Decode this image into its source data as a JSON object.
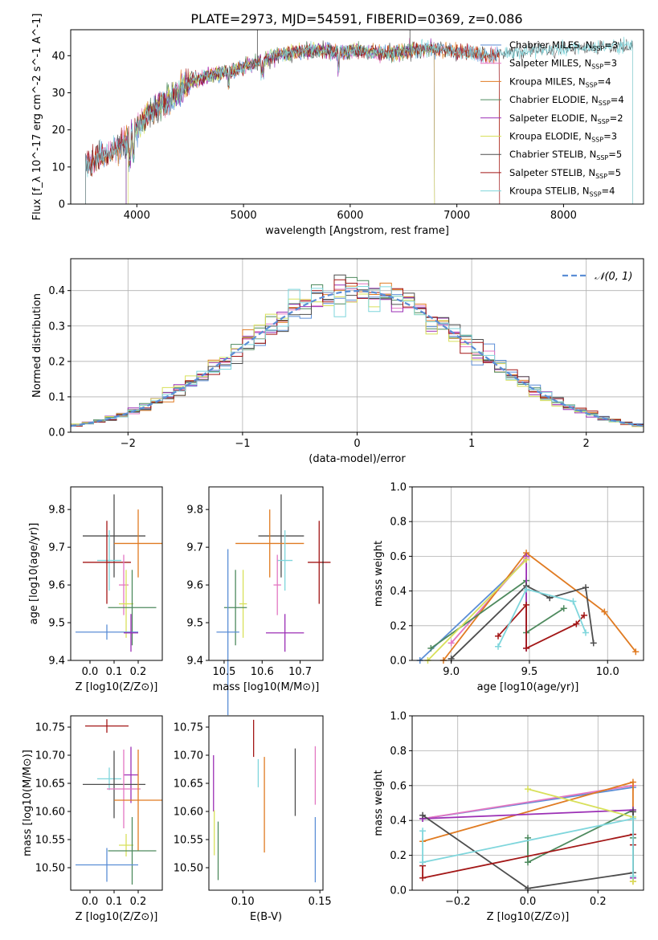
{
  "figure": {
    "title": "PLATE=2973, MJD=54591, FIBERID=0369, z=0.086"
  },
  "colors": {
    "chabrier_miles": "#5b8ed6",
    "salpeter_miles": "#e377c2",
    "kroupa_miles": "#e07b22",
    "chabrier_elodie": "#4e8a5e",
    "salpeter_elodie": "#9b2fb5",
    "kroupa_elodie": "#d8e05a",
    "chabrier_stelib": "#4d4d4d",
    "salpeter_stelib": "#a31717",
    "kroupa_stelib": "#7fd6dc",
    "normal": "#5b8ed6"
  },
  "chart_data": [
    {
      "id": "spectrum",
      "type": "line",
      "xlabel": "wavelength [Angstrom, rest frame]",
      "ylabel": "Flux [f_λ 10^-17 erg cm^-2 s^-1 A^-1]",
      "xlim": [
        3380,
        8750
      ],
      "ylim": [
        0,
        47
      ],
      "xticks": [
        4000,
        5000,
        6000,
        7000,
        8000
      ],
      "yticks": [
        0,
        10,
        20,
        30,
        40
      ],
      "legend_position": "top-right",
      "continuum": {
        "x": [
          3500,
          3700,
          3900,
          4100,
          4300,
          4500,
          4700,
          4900,
          5100,
          5300,
          5500,
          5700,
          5900,
          6100,
          6300,
          6500,
          6700,
          6900,
          7100,
          7300,
          7500,
          7800,
          8100,
          8400,
          8700
        ],
        "y": [
          10,
          13,
          17,
          24,
          28,
          33,
          35,
          36,
          38,
          40,
          41,
          41.5,
          41,
          41.5,
          40.5,
          41,
          42,
          41.5,
          41,
          40,
          41,
          41.5,
          42,
          42.5,
          43
        ]
      },
      "series": [
        {
          "name": "Chabrier MILES",
          "nssp": "3",
          "color_key": "chabrier_miles",
          "xmin": 3520,
          "xmax": 7400
        },
        {
          "name": "Salpeter MILES",
          "nssp": "3",
          "color_key": "salpeter_miles",
          "xmin": 3520,
          "xmax": 7400
        },
        {
          "name": "Kroupa MILES",
          "nssp": "4",
          "color_key": "kroupa_miles",
          "xmin": 3520,
          "xmax": 7400
        },
        {
          "name": "Chabrier ELODIE",
          "nssp": "4",
          "color_key": "chabrier_elodie",
          "xmin": 3900,
          "xmax": 6790
        },
        {
          "name": "Salpeter ELODIE",
          "nssp": "2",
          "color_key": "salpeter_elodie",
          "xmin": 3900,
          "xmax": 6790
        },
        {
          "name": "Kroupa ELODIE",
          "nssp": "3",
          "color_key": "kroupa_elodie",
          "xmin": 3920,
          "xmax": 6790
        },
        {
          "name": "Chabrier STELIB",
          "nssp": "5",
          "color_key": "chabrier_stelib",
          "xmin": 3520,
          "xmax": 8650
        },
        {
          "name": "Salpeter STELIB",
          "nssp": "5",
          "color_key": "salpeter_stelib",
          "xmin": 3520,
          "xmax": 7400
        },
        {
          "name": "Kroupa STELIB",
          "nssp": "4",
          "color_key": "kroupa_stelib",
          "xmin": 3520,
          "xmax": 8650
        }
      ]
    },
    {
      "id": "residuals",
      "type": "line",
      "xlabel": "(data-model)/error",
      "ylabel": "Normed distribution",
      "xlim": [
        -2.5,
        2.5
      ],
      "ylim": [
        0,
        0.49
      ],
      "xticks": [
        -2,
        -1,
        0,
        1,
        2
      ],
      "yticks": [
        0.0,
        0.1,
        0.2,
        0.3,
        0.4
      ],
      "grid": true,
      "legend_position": "top-right",
      "normal_label": "𝒩(0, 1)",
      "bin_width": 0.1
    },
    {
      "id": "age_vs_Z",
      "type": "scatter",
      "xlabel": "Z [log10(Z/Z⊙)]",
      "ylabel": "age [log10(age/yr)]",
      "xlim": [
        -0.08,
        0.3
      ],
      "ylim": [
        9.4,
        9.86
      ],
      "xticks": [
        0.0,
        0.1,
        0.2
      ],
      "yticks": [
        9.4,
        9.5,
        9.6,
        9.7,
        9.8
      ],
      "points": [
        {
          "color_key": "chabrier_stelib",
          "x": 0.1,
          "y": 9.73,
          "xerr": 0.13,
          "yerr": 0.11
        },
        {
          "color_key": "kroupa_miles",
          "x": 0.2,
          "y": 9.71,
          "xerr": 0.1,
          "yerr": 0.09
        },
        {
          "color_key": "kroupa_stelib",
          "x": 0.08,
          "y": 9.665,
          "xerr": 0.05,
          "yerr": 0.08
        },
        {
          "color_key": "salpeter_stelib",
          "x": 0.07,
          "y": 9.66,
          "xerr": 0.1,
          "yerr": 0.11
        },
        {
          "color_key": "salpeter_miles",
          "x": 0.14,
          "y": 9.6,
          "xerr": 0.02,
          "yerr": 0.08
        },
        {
          "color_key": "kroupa_elodie",
          "x": 0.15,
          "y": 9.55,
          "xerr": 0.03,
          "yerr": 0.09
        },
        {
          "color_key": "chabrier_elodie",
          "x": 0.175,
          "y": 9.54,
          "xerr": 0.1,
          "yerr": 0.1
        },
        {
          "color_key": "chabrier_miles",
          "x": 0.07,
          "y": 9.475,
          "xerr": 0.13,
          "yerr": 0.02
        },
        {
          "color_key": "salpeter_elodie",
          "x": 0.17,
          "y": 9.473,
          "xerr": 0.03,
          "yerr": 0.05
        }
      ]
    },
    {
      "id": "age_vs_mass",
      "type": "scatter",
      "xlabel": "mass [log10(M/M⊙)]",
      "ylabel": "",
      "xlim": [
        10.46,
        10.76
      ],
      "ylim": [
        9.4,
        9.86
      ],
      "xticks": [
        10.5,
        10.6,
        10.7
      ],
      "yticks": [
        9.4,
        9.5,
        9.6,
        9.7,
        9.8
      ],
      "points": [
        {
          "color_key": "chabrier_stelib",
          "x": 10.65,
          "y": 9.73,
          "xerr": 0.06,
          "yerr": 0.11
        },
        {
          "color_key": "kroupa_miles",
          "x": 10.62,
          "y": 9.71,
          "xerr": 0.09,
          "yerr": 0.09
        },
        {
          "color_key": "kroupa_stelib",
          "x": 10.66,
          "y": 9.665,
          "xerr": 0.02,
          "yerr": 0.08
        },
        {
          "color_key": "salpeter_stelib",
          "x": 10.75,
          "y": 9.66,
          "xerr": 0.03,
          "yerr": 0.11
        },
        {
          "color_key": "salpeter_miles",
          "x": 10.64,
          "y": 9.6,
          "xerr": 0.01,
          "yerr": 0.08
        },
        {
          "color_key": "kroupa_elodie",
          "x": 10.55,
          "y": 9.55,
          "xerr": 0.01,
          "yerr": 0.09
        },
        {
          "color_key": "chabrier_elodie",
          "x": 10.53,
          "y": 9.54,
          "xerr": 0.03,
          "yerr": 0.1
        },
        {
          "color_key": "chabrier_miles",
          "x": 10.51,
          "y": 9.475,
          "xerr": 0.03,
          "yerr": 0.22
        },
        {
          "color_key": "salpeter_elodie",
          "x": 10.66,
          "y": 9.473,
          "xerr": 0.05,
          "yerr": 0.05
        }
      ]
    },
    {
      "id": "mass_vs_Z",
      "type": "scatter",
      "xlabel": "Z [log10(Z/Z⊙)]",
      "ylabel": "mass [log10(M/M⊙)]",
      "xlim": [
        -0.08,
        0.3
      ],
      "ylim": [
        10.46,
        10.77
      ],
      "xticks": [
        0.0,
        0.1,
        0.2
      ],
      "yticks": [
        10.5,
        10.55,
        10.6,
        10.65,
        10.7,
        10.75
      ],
      "points": [
        {
          "color_key": "salpeter_stelib",
          "x": 0.07,
          "y": 10.752,
          "xerr": 0.09,
          "yerr": 0.012
        },
        {
          "color_key": "salpeter_elodie",
          "x": 0.17,
          "y": 10.665,
          "xerr": 0.03,
          "yerr": 0.05
        },
        {
          "color_key": "kroupa_stelib",
          "x": 0.08,
          "y": 10.658,
          "xerr": 0.05,
          "yerr": 0.02
        },
        {
          "color_key": "chabrier_stelib",
          "x": 0.1,
          "y": 10.648,
          "xerr": 0.13,
          "yerr": 0.06
        },
        {
          "color_key": "salpeter_miles",
          "x": 0.14,
          "y": 10.64,
          "xerr": 0.07,
          "yerr": 0.07
        },
        {
          "color_key": "kroupa_miles",
          "x": 0.2,
          "y": 10.62,
          "xerr": 0.1,
          "yerr": 0.09
        },
        {
          "color_key": "kroupa_elodie",
          "x": 0.15,
          "y": 10.54,
          "xerr": 0.03,
          "yerr": 0.02
        },
        {
          "color_key": "chabrier_elodie",
          "x": 0.175,
          "y": 10.53,
          "xerr": 0.1,
          "yerr": 0.06
        },
        {
          "color_key": "chabrier_miles",
          "x": 0.07,
          "y": 10.505,
          "xerr": 0.13,
          "yerr": 0.03
        }
      ]
    },
    {
      "id": "mass_vs_ebv",
      "type": "scatter",
      "xlabel": "E(B-V)",
      "ylabel": "",
      "xlim": [
        0.078,
        0.152
      ],
      "ylim": [
        10.46,
        10.77
      ],
      "xticks": [
        0.1,
        0.15
      ],
      "yticks": [
        10.5,
        10.55,
        10.6,
        10.65,
        10.7,
        10.75
      ],
      "points": [
        {
          "color_key": "salpeter_stelib",
          "x": 0.107,
          "y": 10.73,
          "xerr": 0,
          "yerr": 0.033
        },
        {
          "color_key": "salpeter_elodie",
          "x": 0.081,
          "y": 10.65,
          "xerr": 0,
          "yerr": 0.05
        },
        {
          "color_key": "kroupa_stelib",
          "x": 0.11,
          "y": 10.668,
          "xerr": 0,
          "yerr": 0.025
        },
        {
          "color_key": "chabrier_stelib",
          "x": 0.134,
          "y": 10.652,
          "xerr": 0,
          "yerr": 0.06
        },
        {
          "color_key": "salpeter_miles",
          "x": 0.147,
          "y": 10.664,
          "xerr": 0,
          "yerr": 0.052
        },
        {
          "color_key": "kroupa_miles",
          "x": 0.114,
          "y": 10.612,
          "xerr": 0,
          "yerr": 0.085
        },
        {
          "color_key": "kroupa_elodie",
          "x": 0.0815,
          "y": 10.562,
          "xerr": 0,
          "yerr": 0.04
        },
        {
          "color_key": "chabrier_elodie",
          "x": 0.084,
          "y": 10.53,
          "xerr": 0,
          "yerr": 0.052
        },
        {
          "color_key": "chabrier_miles",
          "x": 0.147,
          "y": 10.532,
          "xerr": 0,
          "yerr": 0.058
        }
      ]
    },
    {
      "id": "weight_vs_age",
      "type": "line",
      "xlabel": "age [log10(age/yr)]",
      "ylabel": "mass weight",
      "xlim": [
        8.75,
        10.23
      ],
      "ylim": [
        0,
        1.0
      ],
      "xticks": [
        9.0,
        9.5,
        10.0
      ],
      "yticks": [
        0.0,
        0.2,
        0.4,
        0.6,
        0.8,
        1.0
      ],
      "grid": true,
      "series": [
        {
          "color_key": "chabrier_miles",
          "x": [
            8.8,
            9.48
          ],
          "y": [
            0.0,
            0.58
          ]
        },
        {
          "color_key": "salpeter_miles",
          "x": [
            9.0,
            9.48
          ],
          "y": [
            0.1,
            0.59
          ]
        },
        {
          "color_key": "kroupa_miles",
          "x": [
            8.95,
            9.48,
            9.98,
            10.18
          ],
          "y": [
            0.0,
            0.62,
            0.28,
            0.05
          ]
        },
        {
          "color_key": "chabrier_elodie",
          "x": [
            8.87,
            9.48,
            9.48,
            9.72
          ],
          "y": [
            0.07,
            0.46,
            0.16,
            0.3
          ]
        },
        {
          "color_key": "salpeter_elodie",
          "x": [
            9.48,
            9.48
          ],
          "y": [
            0.07,
            0.6
          ]
        },
        {
          "color_key": "kroupa_elodie",
          "x": [
            8.85,
            9.48
          ],
          "y": [
            0.0,
            0.58
          ]
        },
        {
          "color_key": "chabrier_stelib",
          "x": [
            9.0,
            9.48,
            9.63,
            9.86,
            9.91
          ],
          "y": [
            0.01,
            0.43,
            0.36,
            0.42,
            0.1
          ]
        },
        {
          "color_key": "salpeter_stelib",
          "x": [
            9.3,
            9.48,
            9.48,
            9.8,
            9.85
          ],
          "y": [
            0.14,
            0.32,
            0.07,
            0.21,
            0.26
          ]
        },
        {
          "color_key": "kroupa_stelib",
          "x": [
            9.3,
            9.48,
            9.78,
            9.86
          ],
          "y": [
            0.08,
            0.41,
            0.34,
            0.16
          ]
        }
      ]
    },
    {
      "id": "weight_vs_Z",
      "type": "line",
      "xlabel": "Z [log10(Z/Z⊙)]",
      "ylabel": "mass weight",
      "xlim": [
        -0.33,
        0.33
      ],
      "ylim": [
        0,
        1.0
      ],
      "xticks": [
        -0.2,
        0.0,
        0.2
      ],
      "yticks": [
        0.0,
        0.2,
        0.4,
        0.6,
        0.8,
        1.0
      ],
      "grid": true,
      "series": [
        {
          "color_key": "chabrier_miles",
          "x": [
            -0.3,
            0.3
          ],
          "y": [
            0.41,
            0.59
          ]
        },
        {
          "color_key": "salpeter_miles",
          "x": [
            -0.3,
            0.3
          ],
          "y": [
            0.41,
            0.6
          ]
        },
        {
          "color_key": "kroupa_miles",
          "x": [
            -0.3,
            0.3,
            0.3
          ],
          "y": [
            0.28,
            0.62,
            0.05
          ]
        },
        {
          "color_key": "chabrier_elodie",
          "x": [
            0.0,
            0.0,
            0.3,
            0.3
          ],
          "y": [
            0.3,
            0.16,
            0.46,
            0.3
          ]
        },
        {
          "color_key": "salpeter_elodie",
          "x": [
            -0.3,
            0.3,
            0.3
          ],
          "y": [
            0.41,
            0.46,
            0.07
          ]
        },
        {
          "color_key": "kroupa_elodie",
          "x": [
            0.0,
            0.3,
            0.3
          ],
          "y": [
            0.58,
            0.42,
            0.05
          ]
        },
        {
          "color_key": "chabrier_stelib",
          "x": [
            -0.3,
            0.0,
            0.3,
            0.3
          ],
          "y": [
            0.43,
            0.01,
            0.1,
            0.45
          ]
        },
        {
          "color_key": "salpeter_stelib",
          "x": [
            -0.3,
            -0.3,
            0.3,
            0.3
          ],
          "y": [
            0.14,
            0.07,
            0.32,
            0.26
          ]
        },
        {
          "color_key": "kroupa_stelib",
          "x": [
            -0.3,
            -0.3,
            0.3,
            0.3
          ],
          "y": [
            0.34,
            0.16,
            0.41,
            0.08
          ]
        }
      ]
    }
  ]
}
